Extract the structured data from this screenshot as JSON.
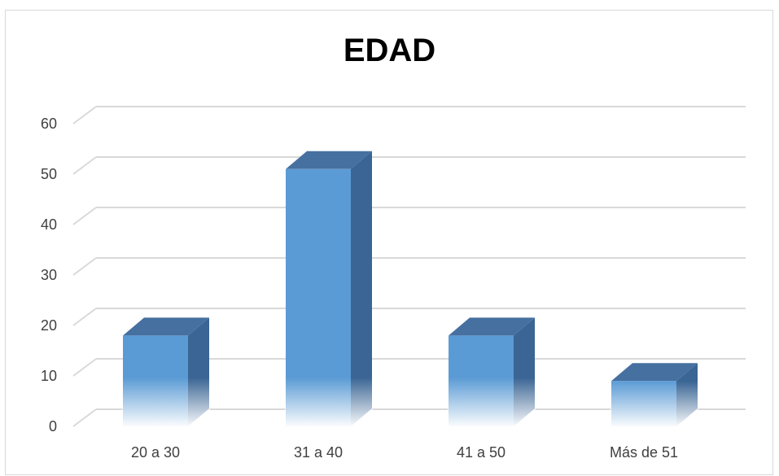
{
  "chart_data": {
    "type": "bar",
    "title": "EDAD",
    "categories": [
      "20 a 30",
      "31 a 40",
      "41 a 50",
      "Más de 51"
    ],
    "values": [
      18,
      51,
      18,
      9
    ],
    "ylim": [
      0,
      60
    ],
    "yticks": [
      "0",
      "10",
      "20",
      "30",
      "40",
      "50",
      "60"
    ],
    "grid": true,
    "style": "3d-column",
    "colors": {
      "front": "#5b9bd5",
      "side": "#3a6594",
      "top": "#46709f",
      "grid": "#d9d9d9"
    }
  }
}
